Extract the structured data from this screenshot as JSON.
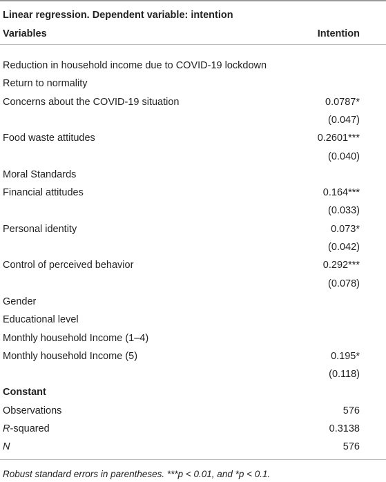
{
  "title": "Linear regression. Dependent variable: intention",
  "header": {
    "variables": "Variables",
    "intention": "Intention"
  },
  "rows": [
    {
      "label": "Reduction in household income due to COVID-19 lockdown"
    },
    {
      "label": "Return to normality"
    },
    {
      "label": "Concerns about the COVID-19 situation",
      "value": "0.0787*"
    },
    {
      "value": "(0.047)"
    },
    {
      "label": "Food waste attitudes",
      "value": "0.2601***"
    },
    {
      "value": "(0.040)"
    },
    {
      "label": "Moral Standards"
    },
    {
      "label": "Financial attitudes",
      "value": "0.164***"
    },
    {
      "value": "(0.033)"
    },
    {
      "label": "Personal identity",
      "value": "0.073*"
    },
    {
      "value": "(0.042)"
    },
    {
      "label": "Control of perceived behavior",
      "value": "0.292***"
    },
    {
      "value": "(0.078)"
    },
    {
      "label": "Gender"
    },
    {
      "label": "Educational level"
    },
    {
      "label": "Monthly household Income (1–4)"
    },
    {
      "label": "Monthly household Income (5)",
      "value": "0.195*"
    },
    {
      "value": "(0.118)"
    },
    {
      "label": "Constant",
      "bold": true
    },
    {
      "label": "Observations",
      "value": "576"
    },
    {
      "label": "R-squared",
      "value": "0.3138",
      "italic_first": true
    },
    {
      "label": "N",
      "value": "576",
      "italic": true
    }
  ],
  "footnote": "Robust standard errors in parentheses. ***p < 0.01, and *p < 0.1."
}
